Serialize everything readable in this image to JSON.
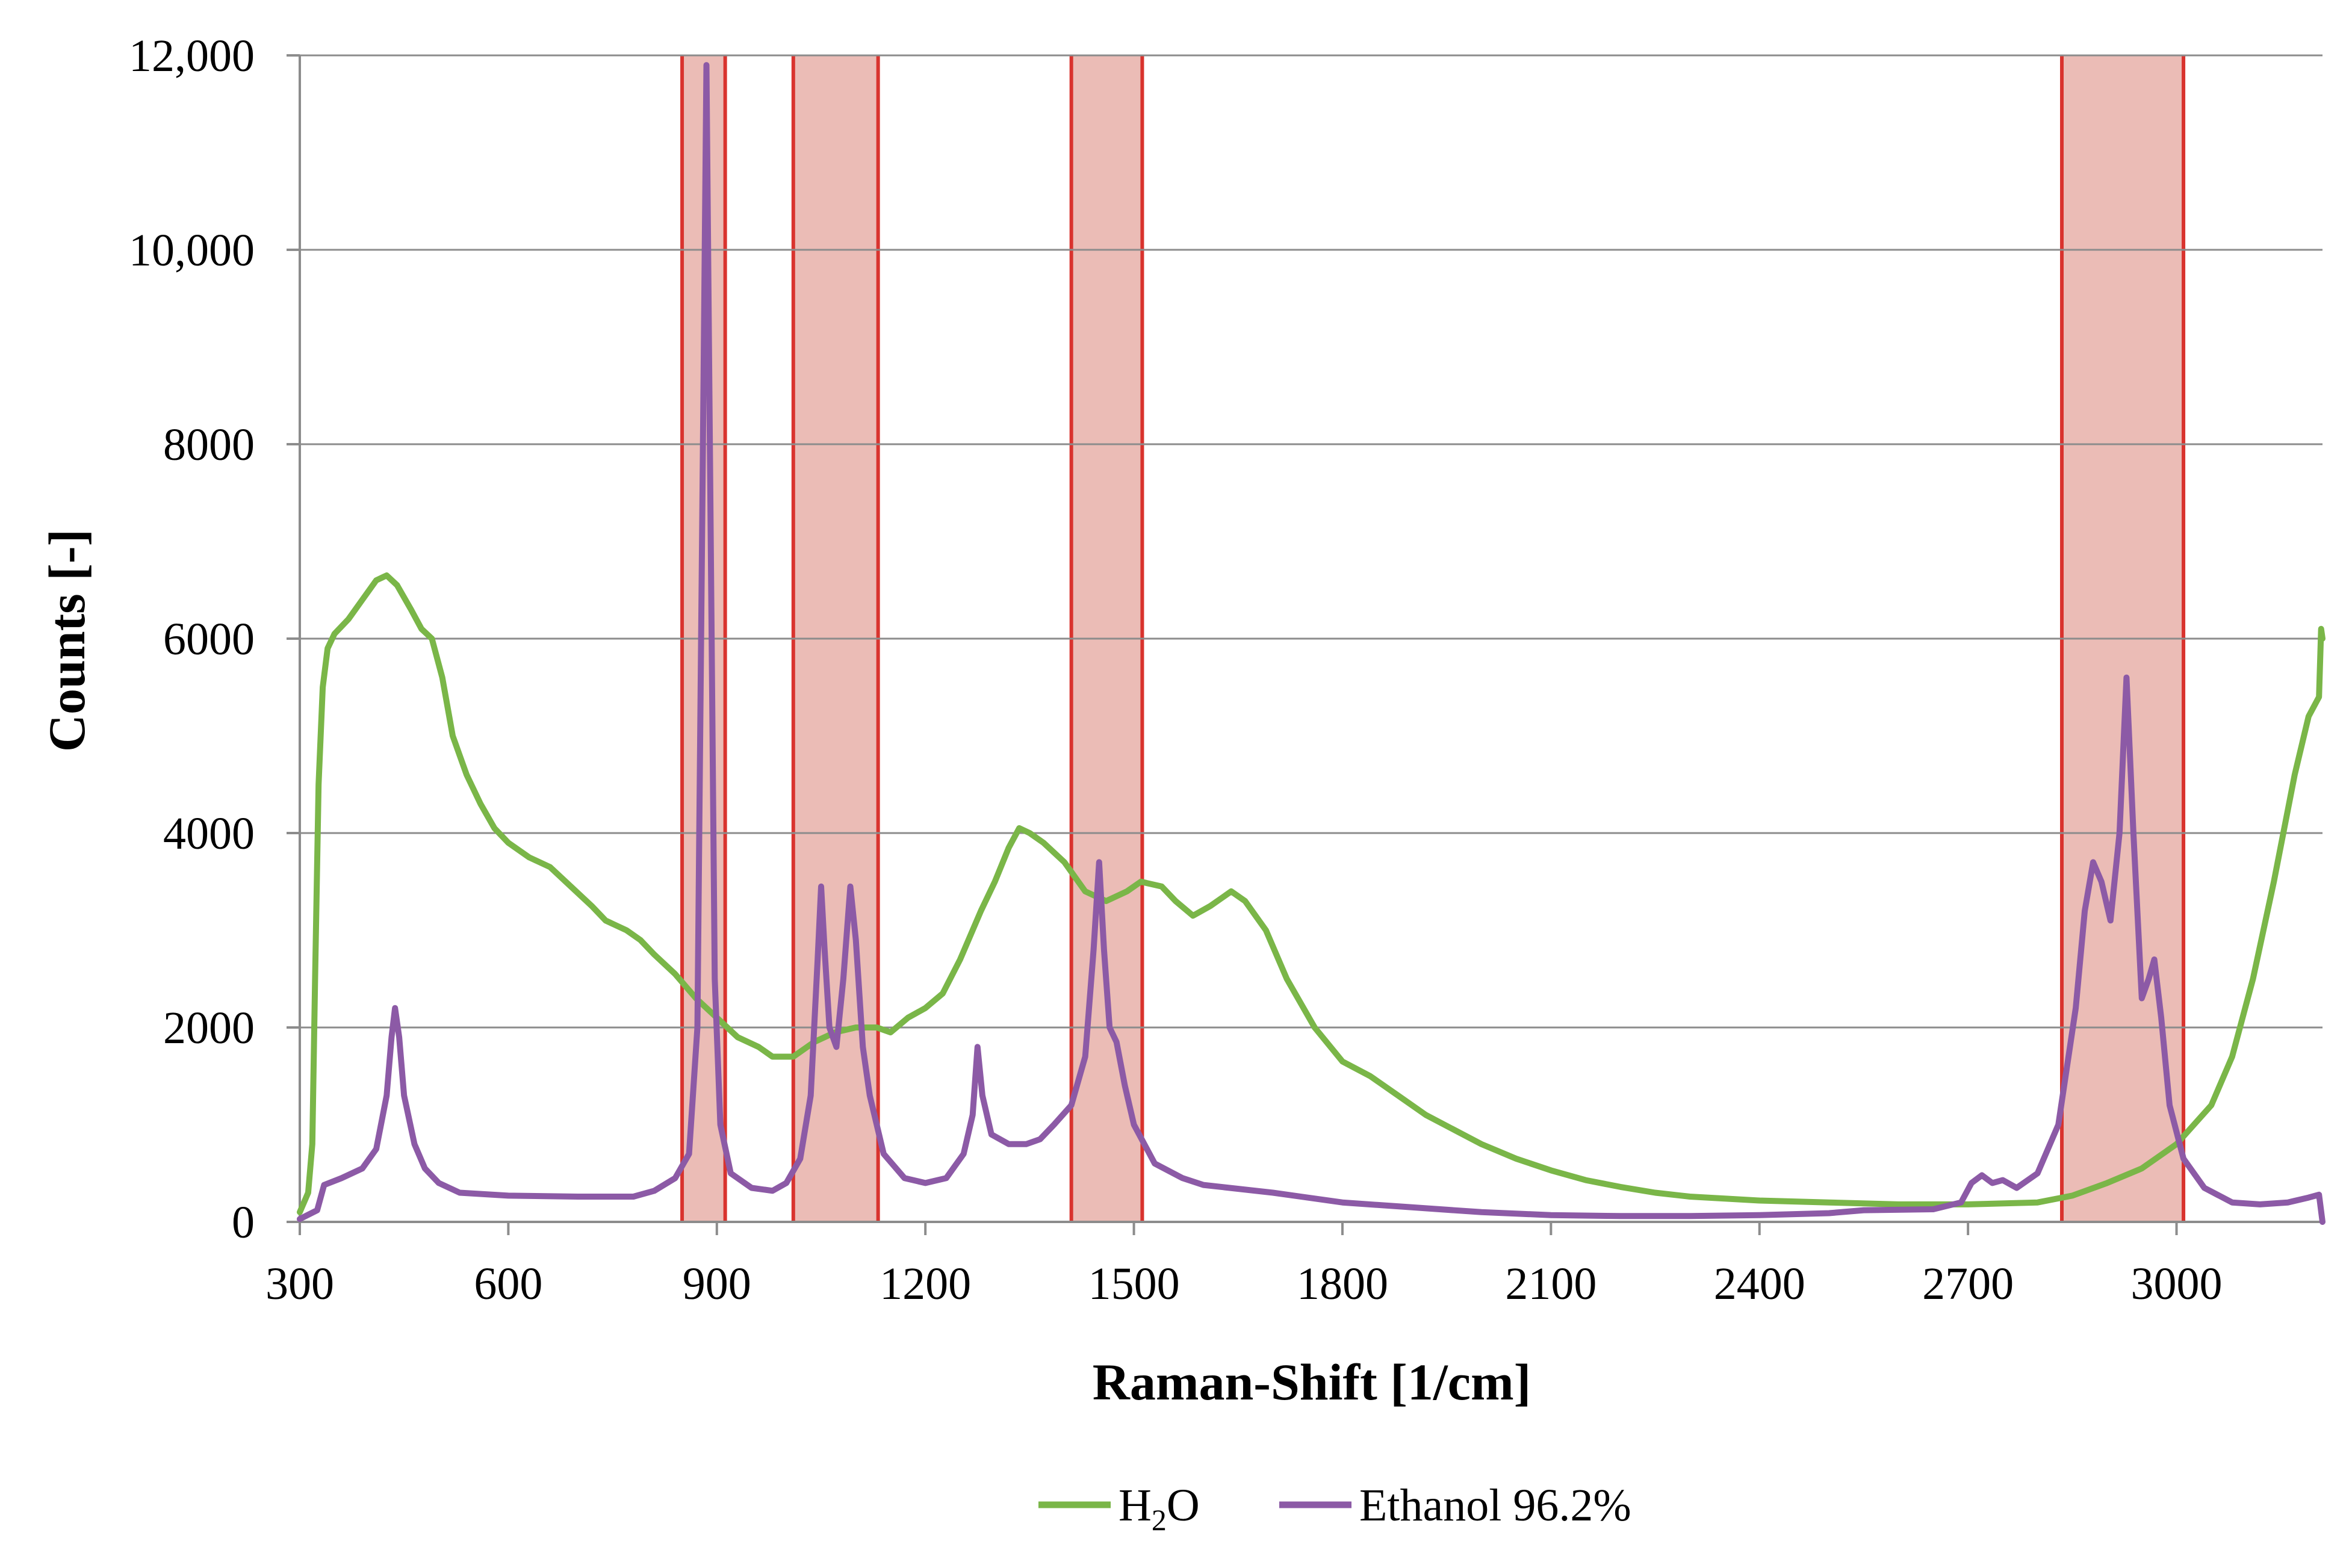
{
  "chart_data": {
    "type": "line",
    "xlabel": "Raman-Shift [1/cm]",
    "ylabel": "Counts [-]",
    "xlim": [
      300,
      3210
    ],
    "ylim": [
      0,
      12000
    ],
    "x_ticks": [
      300,
      600,
      900,
      1200,
      1500,
      1800,
      2100,
      2400,
      2700,
      3000
    ],
    "x_tick_labels": [
      "300",
      "600",
      "900",
      "1200",
      "1500",
      "1800",
      "2100",
      "2400",
      "2700",
      "3000"
    ],
    "y_ticks": [
      0,
      2000,
      4000,
      6000,
      8000,
      10000,
      12000
    ],
    "y_tick_labels": [
      "0",
      "2000",
      "4000",
      "6000",
      "8000",
      "10,000",
      "12,000"
    ],
    "grid": true,
    "legend_position": "bottom-center",
    "highlight_bands": [
      {
        "x0": 850,
        "x1": 912
      },
      {
        "x0": 1010,
        "x1": 1132
      },
      {
        "x0": 1410,
        "x1": 1512
      },
      {
        "x0": 2835,
        "x1": 3010
      }
    ],
    "series": [
      {
        "name": "H2O",
        "label_main": "H",
        "label_sub": "2",
        "label_tail": "O",
        "color": "#7ab648",
        "points": [
          [
            300,
            100
          ],
          [
            312,
            300
          ],
          [
            318,
            800
          ],
          [
            322,
            2500
          ],
          [
            327,
            4500
          ],
          [
            333,
            5500
          ],
          [
            340,
            5900
          ],
          [
            350,
            6050
          ],
          [
            370,
            6200
          ],
          [
            390,
            6400
          ],
          [
            410,
            6600
          ],
          [
            425,
            6650
          ],
          [
            440,
            6550
          ],
          [
            460,
            6300
          ],
          [
            475,
            6100
          ],
          [
            490,
            6000
          ],
          [
            505,
            5600
          ],
          [
            520,
            5000
          ],
          [
            540,
            4600
          ],
          [
            560,
            4300
          ],
          [
            580,
            4050
          ],
          [
            600,
            3900
          ],
          [
            630,
            3750
          ],
          [
            660,
            3650
          ],
          [
            690,
            3450
          ],
          [
            720,
            3250
          ],
          [
            740,
            3100
          ],
          [
            770,
            3000
          ],
          [
            790,
            2900
          ],
          [
            810,
            2750
          ],
          [
            840,
            2550
          ],
          [
            870,
            2300
          ],
          [
            900,
            2100
          ],
          [
            930,
            1900
          ],
          [
            960,
            1800
          ],
          [
            980,
            1700
          ],
          [
            1010,
            1700
          ],
          [
            1040,
            1850
          ],
          [
            1070,
            1950
          ],
          [
            1100,
            2000
          ],
          [
            1130,
            2000
          ],
          [
            1150,
            1950
          ],
          [
            1175,
            2100
          ],
          [
            1200,
            2200
          ],
          [
            1225,
            2350
          ],
          [
            1250,
            2700
          ],
          [
            1280,
            3200
          ],
          [
            1300,
            3500
          ],
          [
            1320,
            3850
          ],
          [
            1335,
            4050
          ],
          [
            1350,
            4000
          ],
          [
            1370,
            3900
          ],
          [
            1400,
            3700
          ],
          [
            1430,
            3400
          ],
          [
            1460,
            3300
          ],
          [
            1490,
            3400
          ],
          [
            1510,
            3500
          ],
          [
            1540,
            3450
          ],
          [
            1560,
            3300
          ],
          [
            1585,
            3150
          ],
          [
            1610,
            3250
          ],
          [
            1640,
            3400
          ],
          [
            1660,
            3300
          ],
          [
            1690,
            3000
          ],
          [
            1720,
            2500
          ],
          [
            1760,
            2000
          ],
          [
            1800,
            1650
          ],
          [
            1840,
            1500
          ],
          [
            1880,
            1300
          ],
          [
            1920,
            1100
          ],
          [
            1960,
            950
          ],
          [
            2000,
            800
          ],
          [
            2050,
            650
          ],
          [
            2100,
            530
          ],
          [
            2150,
            430
          ],
          [
            2200,
            360
          ],
          [
            2250,
            300
          ],
          [
            2300,
            260
          ],
          [
            2350,
            240
          ],
          [
            2400,
            220
          ],
          [
            2500,
            200
          ],
          [
            2600,
            180
          ],
          [
            2700,
            180
          ],
          [
            2800,
            200
          ],
          [
            2850,
            270
          ],
          [
            2900,
            400
          ],
          [
            2950,
            550
          ],
          [
            3000,
            800
          ],
          [
            3050,
            1200
          ],
          [
            3080,
            1700
          ],
          [
            3110,
            2500
          ],
          [
            3140,
            3500
          ],
          [
            3170,
            4600
          ],
          [
            3190,
            5200
          ],
          [
            3205,
            5400
          ],
          [
            3208,
            6100
          ],
          [
            3210,
            6000
          ]
        ]
      },
      {
        "name": "Ethanol 96.2%",
        "label_main": "Ethanol 96.2%",
        "color": "#8c5aa6",
        "points": [
          [
            300,
            30
          ],
          [
            325,
            120
          ],
          [
            335,
            380
          ],
          [
            360,
            450
          ],
          [
            390,
            550
          ],
          [
            410,
            750
          ],
          [
            425,
            1300
          ],
          [
            432,
            1900
          ],
          [
            437,
            2200
          ],
          [
            443,
            1900
          ],
          [
            450,
            1300
          ],
          [
            465,
            800
          ],
          [
            480,
            550
          ],
          [
            500,
            400
          ],
          [
            530,
            300
          ],
          [
            600,
            270
          ],
          [
            700,
            260
          ],
          [
            780,
            260
          ],
          [
            810,
            320
          ],
          [
            840,
            450
          ],
          [
            860,
            700
          ],
          [
            872,
            2000
          ],
          [
            880,
            8000
          ],
          [
            885,
            11900
          ],
          [
            890,
            8000
          ],
          [
            897,
            2500
          ],
          [
            905,
            1000
          ],
          [
            920,
            500
          ],
          [
            950,
            350
          ],
          [
            980,
            320
          ],
          [
            1000,
            400
          ],
          [
            1020,
            650
          ],
          [
            1035,
            1300
          ],
          [
            1045,
            2700
          ],
          [
            1050,
            3450
          ],
          [
            1055,
            2800
          ],
          [
            1062,
            2000
          ],
          [
            1072,
            1800
          ],
          [
            1082,
            2500
          ],
          [
            1092,
            3450
          ],
          [
            1100,
            2900
          ],
          [
            1110,
            1800
          ],
          [
            1120,
            1300
          ],
          [
            1140,
            700
          ],
          [
            1170,
            450
          ],
          [
            1200,
            400
          ],
          [
            1230,
            450
          ],
          [
            1255,
            700
          ],
          [
            1268,
            1100
          ],
          [
            1275,
            1800
          ],
          [
            1282,
            1300
          ],
          [
            1295,
            900
          ],
          [
            1320,
            800
          ],
          [
            1345,
            800
          ],
          [
            1365,
            850
          ],
          [
            1385,
            1000
          ],
          [
            1410,
            1200
          ],
          [
            1430,
            1700
          ],
          [
            1442,
            2800
          ],
          [
            1450,
            3700
          ],
          [
            1457,
            2800
          ],
          [
            1465,
            2000
          ],
          [
            1475,
            1850
          ],
          [
            1487,
            1400
          ],
          [
            1500,
            1000
          ],
          [
            1530,
            600
          ],
          [
            1570,
            450
          ],
          [
            1600,
            380
          ],
          [
            1700,
            300
          ],
          [
            1800,
            200
          ],
          [
            1900,
            150
          ],
          [
            2000,
            100
          ],
          [
            2100,
            70
          ],
          [
            2200,
            60
          ],
          [
            2300,
            60
          ],
          [
            2400,
            70
          ],
          [
            2500,
            90
          ],
          [
            2550,
            120
          ],
          [
            2650,
            130
          ],
          [
            2690,
            200
          ],
          [
            2705,
            400
          ],
          [
            2720,
            480
          ],
          [
            2735,
            400
          ],
          [
            2750,
            430
          ],
          [
            2770,
            350
          ],
          [
            2800,
            500
          ],
          [
            2830,
            1000
          ],
          [
            2855,
            2200
          ],
          [
            2868,
            3200
          ],
          [
            2880,
            3700
          ],
          [
            2892,
            3500
          ],
          [
            2905,
            3100
          ],
          [
            2918,
            4000
          ],
          [
            2928,
            5600
          ],
          [
            2938,
            4000
          ],
          [
            2950,
            2300
          ],
          [
            2960,
            2500
          ],
          [
            2968,
            2700
          ],
          [
            2978,
            2100
          ],
          [
            2990,
            1200
          ],
          [
            3010,
            650
          ],
          [
            3040,
            350
          ],
          [
            3080,
            200
          ],
          [
            3120,
            180
          ],
          [
            3160,
            200
          ],
          [
            3190,
            250
          ],
          [
            3205,
            280
          ],
          [
            3210,
            0
          ]
        ]
      }
    ]
  }
}
